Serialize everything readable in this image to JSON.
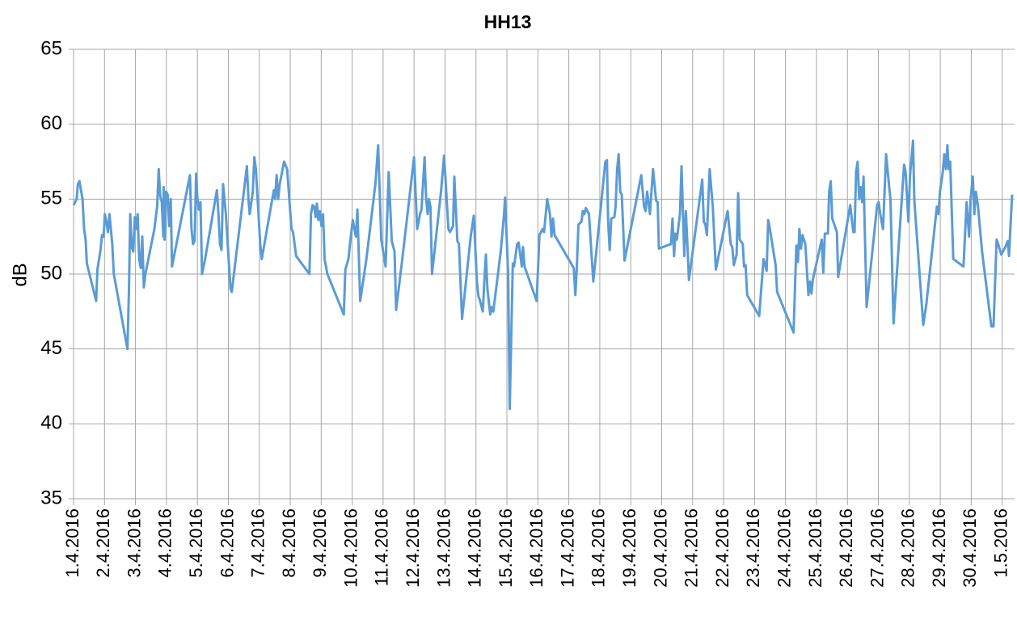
{
  "chart_data": {
    "type": "line",
    "title": "HH13",
    "ylabel": "dB",
    "xlim": [
      0,
      30.4
    ],
    "ylim": [
      35,
      65
    ],
    "yticks": [
      35,
      40,
      45,
      50,
      55,
      60,
      65
    ],
    "grid": true,
    "xticks": [
      {
        "value": 0,
        "label": "1.4.2016"
      },
      {
        "value": 1,
        "label": "2.4.2016"
      },
      {
        "value": 2,
        "label": "3.4.2016"
      },
      {
        "value": 3,
        "label": "4.4.2016"
      },
      {
        "value": 4,
        "label": "5.4.2016"
      },
      {
        "value": 5,
        "label": "6.4.2016"
      },
      {
        "value": 6,
        "label": "7.4.2016"
      },
      {
        "value": 7,
        "label": "8.4.2016"
      },
      {
        "value": 8,
        "label": "9.4.2016"
      },
      {
        "value": 9,
        "label": "10.4.2016"
      },
      {
        "value": 10,
        "label": "11.4.2016"
      },
      {
        "value": 11,
        "label": "12.4.2016"
      },
      {
        "value": 12,
        "label": "13.4.2016"
      },
      {
        "value": 13,
        "label": "14.4.2016"
      },
      {
        "value": 14,
        "label": "15.4.2016"
      },
      {
        "value": 15,
        "label": "16.4.2016"
      },
      {
        "value": 16,
        "label": "17.4.2016"
      },
      {
        "value": 17,
        "label": "18.4.2016"
      },
      {
        "value": 18,
        "label": "19.4.2016"
      },
      {
        "value": 19,
        "label": "20.4.2016"
      },
      {
        "value": 20,
        "label": "21.4.2016"
      },
      {
        "value": 21,
        "label": "22.4.2016"
      },
      {
        "value": 22,
        "label": "23.4.2016"
      },
      {
        "value": 23,
        "label": "24.4.2016"
      },
      {
        "value": 24,
        "label": "25.4.2016"
      },
      {
        "value": 25,
        "label": "26.4.2016"
      },
      {
        "value": 26,
        "label": "27.4.2016"
      },
      {
        "value": 27,
        "label": "28.4.2016"
      },
      {
        "value": 28,
        "label": "29.4.2016"
      },
      {
        "value": 29,
        "label": "30.4.2016"
      },
      {
        "value": 30,
        "label": "1.5.2016"
      }
    ],
    "x": [
      0,
      0.1,
      0.14,
      0.19,
      0.29,
      0.34,
      0.39,
      0.43,
      0.73,
      0.77,
      0.87,
      0.92,
      0.97,
      1.01,
      1.06,
      1.11,
      1.16,
      1.25,
      1.3,
      1.74,
      1.79,
      1.83,
      1.88,
      1.93,
      1.98,
      2.03,
      2.07,
      2.12,
      2.17,
      2.22,
      2.27,
      2.32,
      2.61,
      2.7,
      2.75,
      2.8,
      2.85,
      2.9,
      2.91,
      2.94,
      2.99,
      3.04,
      3.09,
      3.14,
      3.18,
      3.76,
      3.81,
      3.86,
      3.91,
      3.96,
      4.0,
      4.05,
      4.1,
      4.15,
      4.25,
      4.63,
      4.68,
      4.73,
      4.78,
      4.83,
      4.92,
      5.07,
      5.11,
      5.6,
      5.65,
      5.69,
      5.79,
      5.84,
      5.89,
      6.03,
      6.08,
      6.47,
      6.51,
      6.56,
      6.61,
      6.66,
      6.8,
      6.9,
      7.04,
      7.09,
      7.19,
      7.62,
      7.67,
      7.72,
      7.77,
      7.82,
      7.86,
      7.91,
      7.96,
      8.01,
      8.06,
      8.11,
      8.2,
      8.69,
      8.73,
      8.78,
      8.88,
      8.93,
      9.02,
      9.12,
      9.17,
      9.26,
      9.46,
      9.75,
      9.84,
      9.94,
      10.08,
      10.18,
      10.28,
      10.37,
      10.42,
      10.62,
      10.9,
      11.0,
      11.1,
      11.15,
      11.19,
      11.24,
      11.34,
      11.39,
      11.44,
      11.48,
      11.53,
      11.58,
      11.87,
      11.97,
      12.11,
      12.16,
      12.26,
      12.3,
      12.4,
      12.45,
      12.55,
      12.83,
      12.93,
      13.03,
      13.08,
      13.12,
      13.22,
      13.27,
      13.32,
      13.37,
      13.46,
      13.51,
      13.56,
      13.8,
      13.9,
      13.94,
      14.04,
      14.09,
      14.19,
      14.23,
      14.33,
      14.38,
      14.48,
      14.52,
      14.57,
      14.96,
      15.05,
      15.15,
      15.2,
      15.3,
      15.39,
      15.44,
      15.49,
      15.54,
      16.16,
      16.21,
      16.26,
      16.31,
      16.41,
      16.45,
      16.5,
      16.55,
      16.65,
      16.79,
      17.18,
      17.23,
      17.27,
      17.32,
      17.37,
      17.47,
      17.51,
      17.56,
      17.61,
      17.66,
      17.71,
      17.8,
      18.34,
      18.43,
      18.48,
      18.53,
      18.62,
      18.67,
      18.72,
      18.82,
      18.87,
      18.91,
      19.3,
      19.35,
      19.4,
      19.44,
      19.49,
      19.59,
      19.64,
      19.73,
      19.78,
      19.83,
      19.88,
      20.31,
      20.36,
      20.41,
      20.46,
      20.55,
      20.65,
      20.75,
      21.13,
      21.23,
      21.28,
      21.33,
      21.42,
      21.47,
      21.52,
      21.62,
      21.66,
      21.71,
      21.76,
      22.15,
      22.29,
      22.34,
      22.39,
      22.44,
      22.48,
      22.68,
      22.73,
      23.26,
      23.35,
      23.4,
      23.45,
      23.5,
      23.55,
      23.64,
      23.74,
      23.79,
      23.84,
      23.88,
      24.17,
      24.22,
      24.27,
      24.37,
      24.41,
      24.46,
      24.51,
      24.66,
      24.7,
      25.09,
      25.19,
      25.23,
      25.28,
      25.33,
      25.38,
      25.43,
      25.48,
      25.52,
      25.62,
      25.96,
      26.01,
      26.06,
      26.15,
      26.25,
      26.34,
      26.39,
      26.49,
      26.83,
      26.88,
      26.97,
      27.02,
      27.12,
      27.16,
      27.21,
      27.45,
      27.55,
      27.89,
      27.94,
      27.99,
      28.08,
      28.13,
      28.18,
      28.23,
      28.27,
      28.32,
      28.42,
      28.75,
      28.85,
      28.93,
      28.98,
      29.05,
      29.1,
      29.15,
      29.22,
      29.35,
      29.65,
      29.72,
      29.82,
      29.87,
      29.97,
      30.1,
      30.18,
      30.22,
      30.32
    ],
    "series": [
      {
        "color": "#5b9bd5",
        "values": [
          54.6,
          55.0,
          56.0,
          56.2,
          55.0,
          53.0,
          52.3,
          50.7,
          48.2,
          50.3,
          51.6,
          52.6,
          52.5,
          54.0,
          53.5,
          52.8,
          54.0,
          52.0,
          50.0,
          45.0,
          49.0,
          54.0,
          51.8,
          51.5,
          53.8,
          53.0,
          54.0,
          51.0,
          50.4,
          52.5,
          49.1,
          50.0,
          53.0,
          54.5,
          57.0,
          55.2,
          54.8,
          52.5,
          55.8,
          52.3,
          55.5,
          55.3,
          53.2,
          55.0,
          50.5,
          56.6,
          53.0,
          52.0,
          52.2,
          56.7,
          55.0,
          54.3,
          54.8,
          50.0,
          51.0,
          55.6,
          54.0,
          52.0,
          51.6,
          56.0,
          54.0,
          49.0,
          48.8,
          57.2,
          55.0,
          54.0,
          55.5,
          57.8,
          57.0,
          52.0,
          51.0,
          55.6,
          55.0,
          56.6,
          55.0,
          56.0,
          57.5,
          57.0,
          53.0,
          52.8,
          51.2,
          50.0,
          54.0,
          54.6,
          54.5,
          53.8,
          54.7,
          53.6,
          54.2,
          53.2,
          54.0,
          51.0,
          50.0,
          47.5,
          47.3,
          50.3,
          51.0,
          52.0,
          53.6,
          52.5,
          54.3,
          48.2,
          51.0,
          56.0,
          58.6,
          52.3,
          50.5,
          56.8,
          52.2,
          51.5,
          47.6,
          51.0,
          56.0,
          57.8,
          53.0,
          53.5,
          54.0,
          54.3,
          57.8,
          55.0,
          54.0,
          55.0,
          54.5,
          50.0,
          55.5,
          57.9,
          53.0,
          52.8,
          53.2,
          56.5,
          52.2,
          52.0,
          47.0,
          52.5,
          53.9,
          49.5,
          48.5,
          48.3,
          47.5,
          49.5,
          51.3,
          49.0,
          47.3,
          47.8,
          47.5,
          51.5,
          53.8,
          55.1,
          50.0,
          41.0,
          50.7,
          50.5,
          52.0,
          52.1,
          50.5,
          51.8,
          50.5,
          48.2,
          52.6,
          53.0,
          52.8,
          55.0,
          54.0,
          52.5,
          53.7,
          52.6,
          50.4,
          48.6,
          50.5,
          53.3,
          53.5,
          54.2,
          54.0,
          54.4,
          54.0,
          49.5,
          57.5,
          57.6,
          53.5,
          51.6,
          53.7,
          53.8,
          54.5,
          57.0,
          58.0,
          55.5,
          55.3,
          50.9,
          56.6,
          54.5,
          54.2,
          55.5,
          54.0,
          55.5,
          57.0,
          54.9,
          54.8,
          51.7,
          52.0,
          53.7,
          51.2,
          52.7,
          52.3,
          54.0,
          57.2,
          51.2,
          54.2,
          52.0,
          49.6,
          56.3,
          53.5,
          53.3,
          52.6,
          57.0,
          54.5,
          50.3,
          54.2,
          52.0,
          51.8,
          50.6,
          51.3,
          55.4,
          52.3,
          52.0,
          50.5,
          50.6,
          48.6,
          47.2,
          51.0,
          50.6,
          50.2,
          53.6,
          53.2,
          50.6,
          48.8,
          46.1,
          51.9,
          50.8,
          53.0,
          51.7,
          52.6,
          52.0,
          48.6,
          49.5,
          48.7,
          49.6,
          52.3,
          50.1,
          52.7,
          52.7,
          55.5,
          56.2,
          53.7,
          52.8,
          49.8,
          54.6,
          52.8,
          52.8,
          56.8,
          57.5,
          55.0,
          55.8,
          54.8,
          56.5,
          47.8,
          54.6,
          54.8,
          54.0,
          53.0,
          58.0,
          56.0,
          55.0,
          46.7,
          57.3,
          56.8,
          53.5,
          56.5,
          58.9,
          55.0,
          53.5,
          46.6,
          48.0,
          54.5,
          54.0,
          55.5,
          56.8,
          58.0,
          57.0,
          58.6,
          57.0,
          57.5,
          51.0,
          50.5,
          54.8,
          52.5,
          55.0,
          56.5,
          54.0,
          55.5,
          54.5,
          51.5,
          46.5,
          46.5,
          52.3,
          52.0,
          51.3,
          51.8,
          52.2,
          51.2,
          55.3
        ]
      }
    ]
  }
}
